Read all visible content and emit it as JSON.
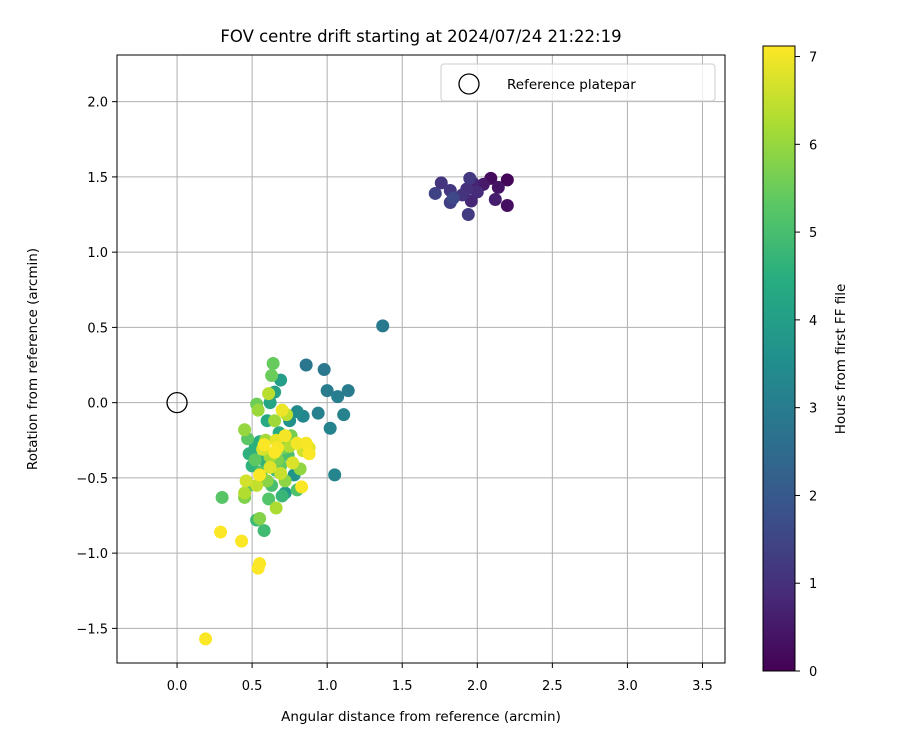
{
  "chart_data": {
    "type": "scatter",
    "title": "FOV centre drift starting at 2024/07/24 21:22:19",
    "xlabel": "Angular distance from reference (arcmin)",
    "ylabel": "Rotation from reference (arcmin)",
    "xlim": [
      -0.4,
      3.65
    ],
    "ylim": [
      -1.73,
      2.31
    ],
    "xticks": [
      0.0,
      0.5,
      1.0,
      1.5,
      2.0,
      2.5,
      3.0,
      3.5
    ],
    "xtick_labels": [
      "0.0",
      "0.5",
      "1.0",
      "1.5",
      "2.0",
      "2.5",
      "3.0",
      "3.5"
    ],
    "yticks": [
      -1.5,
      -1.0,
      -0.5,
      0.0,
      0.5,
      1.0,
      1.5,
      2.0
    ],
    "ytick_labels": [
      "−1.5",
      "−1.0",
      "−0.5",
      "0.0",
      "0.5",
      "1.0",
      "1.5",
      "2.0"
    ],
    "grid": true,
    "legend": {
      "position": "upper-right",
      "entries": [
        "Reference platepar"
      ]
    },
    "reference_point": {
      "x": 0.0,
      "y": 0.0,
      "label": "Reference platepar"
    },
    "colorbar": {
      "label": "Hours from first FF file",
      "colormap": "viridis",
      "range": [
        0,
        7.12
      ],
      "ticks": [
        0,
        1,
        2,
        3,
        4,
        5,
        6,
        7
      ],
      "tick_labels": [
        "0",
        "1",
        "2",
        "3",
        "4",
        "5",
        "6",
        "7"
      ]
    },
    "points": [
      {
        "x": 2.2,
        "y": 1.48,
        "t": 0.1
      },
      {
        "x": 2.09,
        "y": 1.49,
        "t": 0.2
      },
      {
        "x": 2.2,
        "y": 1.31,
        "t": 0.3
      },
      {
        "x": 2.14,
        "y": 1.43,
        "t": 0.4
      },
      {
        "x": 2.04,
        "y": 1.45,
        "t": 0.5
      },
      {
        "x": 2.12,
        "y": 1.35,
        "t": 0.6
      },
      {
        "x": 1.97,
        "y": 1.46,
        "t": 0.7
      },
      {
        "x": 1.96,
        "y": 1.34,
        "t": 0.8
      },
      {
        "x": 2.0,
        "y": 1.4,
        "t": 0.9
      },
      {
        "x": 1.93,
        "y": 1.42,
        "t": 1.0
      },
      {
        "x": 1.9,
        "y": 1.38,
        "t": 1.05
      },
      {
        "x": 1.76,
        "y": 1.46,
        "t": 1.1
      },
      {
        "x": 1.82,
        "y": 1.41,
        "t": 1.15
      },
      {
        "x": 1.95,
        "y": 1.49,
        "t": 1.2
      },
      {
        "x": 1.94,
        "y": 1.25,
        "t": 1.25
      },
      {
        "x": 1.82,
        "y": 1.33,
        "t": 1.35
      },
      {
        "x": 1.72,
        "y": 1.39,
        "t": 1.45
      },
      {
        "x": 1.84,
        "y": 1.36,
        "t": 1.55
      },
      {
        "x": 1.37,
        "y": 0.51,
        "t": 2.9
      },
      {
        "x": 0.86,
        "y": 0.25,
        "t": 2.8
      },
      {
        "x": 0.98,
        "y": 0.22,
        "t": 2.85
      },
      {
        "x": 1.0,
        "y": 0.08,
        "t": 2.95
      },
      {
        "x": 1.14,
        "y": 0.08,
        "t": 3.0
      },
      {
        "x": 1.07,
        "y": 0.04,
        "t": 3.05
      },
      {
        "x": 0.94,
        "y": -0.07,
        "t": 3.1
      },
      {
        "x": 1.11,
        "y": -0.08,
        "t": 3.15
      },
      {
        "x": 1.02,
        "y": -0.17,
        "t": 3.2
      },
      {
        "x": 1.05,
        "y": -0.48,
        "t": 3.25
      },
      {
        "x": 0.84,
        "y": -0.09,
        "t": 3.3
      },
      {
        "x": 0.8,
        "y": -0.06,
        "t": 3.45
      },
      {
        "x": 0.75,
        "y": -0.12,
        "t": 3.6
      },
      {
        "x": 0.78,
        "y": -0.48,
        "t": 3.7
      },
      {
        "x": 0.72,
        "y": -0.6,
        "t": 3.85
      },
      {
        "x": 0.69,
        "y": 0.15,
        "t": 4.0
      },
      {
        "x": 0.65,
        "y": 0.07,
        "t": 4.1
      },
      {
        "x": 0.62,
        "y": 0.0,
        "t": 4.2
      },
      {
        "x": 0.6,
        "y": -0.12,
        "t": 4.3
      },
      {
        "x": 0.68,
        "y": -0.2,
        "t": 4.4
      },
      {
        "x": 0.55,
        "y": -0.26,
        "t": 4.45
      },
      {
        "x": 0.52,
        "y": -0.3,
        "t": 4.5
      },
      {
        "x": 0.48,
        "y": -0.34,
        "t": 4.55
      },
      {
        "x": 0.5,
        "y": -0.42,
        "t": 4.6
      },
      {
        "x": 0.58,
        "y": -0.38,
        "t": 4.65
      },
      {
        "x": 0.66,
        "y": -0.45,
        "t": 4.7
      },
      {
        "x": 0.7,
        "y": -0.62,
        "t": 4.75
      },
      {
        "x": 0.53,
        "y": -0.78,
        "t": 4.8
      },
      {
        "x": 0.58,
        "y": -0.85,
        "t": 4.9
      },
      {
        "x": 0.48,
        "y": -0.55,
        "t": 4.95
      },
      {
        "x": 0.63,
        "y": -0.55,
        "t": 5.0
      },
      {
        "x": 0.74,
        "y": -0.35,
        "t": 5.05
      },
      {
        "x": 0.8,
        "y": -0.58,
        "t": 5.1
      },
      {
        "x": 0.56,
        "y": -0.46,
        "t": 5.15
      },
      {
        "x": 0.61,
        "y": -0.64,
        "t": 5.2
      },
      {
        "x": 0.3,
        "y": -0.63,
        "t": 5.25
      },
      {
        "x": 0.47,
        "y": -0.24,
        "t": 5.3
      },
      {
        "x": 0.52,
        "y": -0.38,
        "t": 5.35
      },
      {
        "x": 0.69,
        "y": -0.42,
        "t": 5.4
      },
      {
        "x": 0.64,
        "y": 0.26,
        "t": 5.45
      },
      {
        "x": 0.63,
        "y": 0.18,
        "t": 5.5
      },
      {
        "x": 0.53,
        "y": -0.01,
        "t": 5.55
      },
      {
        "x": 0.71,
        "y": -0.3,
        "t": 5.6
      },
      {
        "x": 0.76,
        "y": -0.22,
        "t": 5.65
      },
      {
        "x": 0.67,
        "y": -0.38,
        "t": 5.7
      },
      {
        "x": 0.45,
        "y": -0.63,
        "t": 5.75
      },
      {
        "x": 0.55,
        "y": -0.77,
        "t": 5.8
      },
      {
        "x": 0.6,
        "y": -0.52,
        "t": 5.85
      },
      {
        "x": 0.72,
        "y": -0.52,
        "t": 5.9
      },
      {
        "x": 0.82,
        "y": -0.44,
        "t": 5.95
      },
      {
        "x": 0.45,
        "y": -0.18,
        "t": 6.0
      },
      {
        "x": 0.54,
        "y": -0.05,
        "t": 6.05
      },
      {
        "x": 0.65,
        "y": -0.12,
        "t": 6.1
      },
      {
        "x": 0.59,
        "y": -0.25,
        "t": 6.15
      },
      {
        "x": 0.62,
        "y": -0.36,
        "t": 6.2
      },
      {
        "x": 0.66,
        "y": -0.7,
        "t": 6.25
      },
      {
        "x": 0.45,
        "y": -0.6,
        "t": 6.3
      },
      {
        "x": 0.75,
        "y": -0.29,
        "t": 6.35
      },
      {
        "x": 0.61,
        "y": 0.06,
        "t": 6.4
      },
      {
        "x": 0.73,
        "y": -0.08,
        "t": 6.45
      },
      {
        "x": 0.53,
        "y": -0.55,
        "t": 6.5
      },
      {
        "x": 0.69,
        "y": -0.47,
        "t": 6.55
      },
      {
        "x": 0.84,
        "y": -0.32,
        "t": 6.6
      },
      {
        "x": 0.46,
        "y": -0.52,
        "t": 6.65
      },
      {
        "x": 0.57,
        "y": -0.31,
        "t": 6.7
      },
      {
        "x": 0.77,
        "y": -0.4,
        "t": 6.75
      },
      {
        "x": 0.62,
        "y": -0.43,
        "t": 6.8
      },
      {
        "x": 0.88,
        "y": -0.3,
        "t": 6.85
      },
      {
        "x": 0.66,
        "y": -0.25,
        "t": 6.9
      },
      {
        "x": 0.7,
        "y": -0.05,
        "t": 6.95
      },
      {
        "x": 0.8,
        "y": -0.27,
        "t": 7.0
      },
      {
        "x": 0.72,
        "y": -0.22,
        "t": 7.02
      },
      {
        "x": 0.86,
        "y": -0.27,
        "t": 7.04
      },
      {
        "x": 0.67,
        "y": -0.3,
        "t": 7.06
      },
      {
        "x": 0.83,
        "y": -0.56,
        "t": 7.08
      },
      {
        "x": 0.55,
        "y": -0.48,
        "t": 7.09
      },
      {
        "x": 0.65,
        "y": -0.33,
        "t": 7.1
      },
      {
        "x": 0.88,
        "y": -0.34,
        "t": 7.1
      },
      {
        "x": 0.55,
        "y": -1.07,
        "t": 7.1
      },
      {
        "x": 0.54,
        "y": -1.1,
        "t": 7.1
      },
      {
        "x": 0.43,
        "y": -0.92,
        "t": 7.1
      },
      {
        "x": 0.29,
        "y": -0.86,
        "t": 7.1
      },
      {
        "x": 0.19,
        "y": -1.57,
        "t": 7.1
      },
      {
        "x": 0.58,
        "y": -0.28,
        "t": 7.1
      }
    ]
  }
}
